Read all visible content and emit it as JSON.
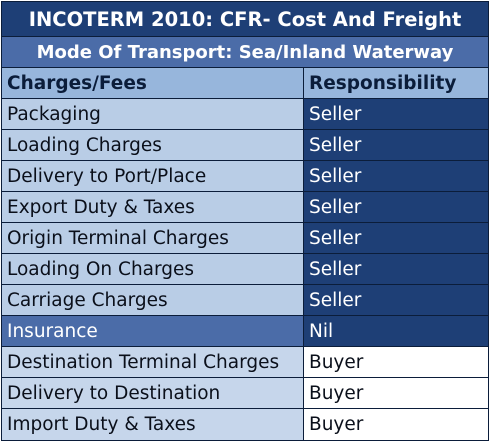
{
  "title": "INCOTERM 2010: CFR- Cost And Freight",
  "mode": "Mode Of Transport: Sea/Inland Waterway",
  "columns": {
    "charges": "Charges/Fees",
    "responsibility": "Responsibility"
  },
  "rows": [
    {
      "charge": "Packaging",
      "responsibility": "Seller",
      "kind": "seller"
    },
    {
      "charge": "Loading Charges",
      "responsibility": "Seller",
      "kind": "seller"
    },
    {
      "charge": "Delivery to Port/Place",
      "responsibility": "Seller",
      "kind": "seller"
    },
    {
      "charge": "Export Duty & Taxes",
      "responsibility": "Seller",
      "kind": "seller"
    },
    {
      "charge": "Origin Terminal Charges",
      "responsibility": "Seller",
      "kind": "seller"
    },
    {
      "charge": "Loading On Charges",
      "responsibility": "Seller",
      "kind": "seller"
    },
    {
      "charge": "Carriage Charges",
      "responsibility": "Seller",
      "kind": "seller"
    },
    {
      "charge": "Insurance",
      "responsibility": "Nil",
      "kind": "nil"
    },
    {
      "charge": "Destination Terminal Charges",
      "responsibility": "Buyer",
      "kind": "buyer"
    },
    {
      "charge": "Delivery to Destination",
      "responsibility": "Buyer",
      "kind": "buyer"
    },
    {
      "charge": "Import Duty & Taxes",
      "responsibility": "Buyer",
      "kind": "buyer"
    }
  ],
  "colors": {
    "dark_navy": "#1e3f76",
    "mid_blue": "#4b6ca8",
    "light_blue": "#b9cde6",
    "header_blue": "#97b6dc",
    "border": "#0b1d3a"
  }
}
